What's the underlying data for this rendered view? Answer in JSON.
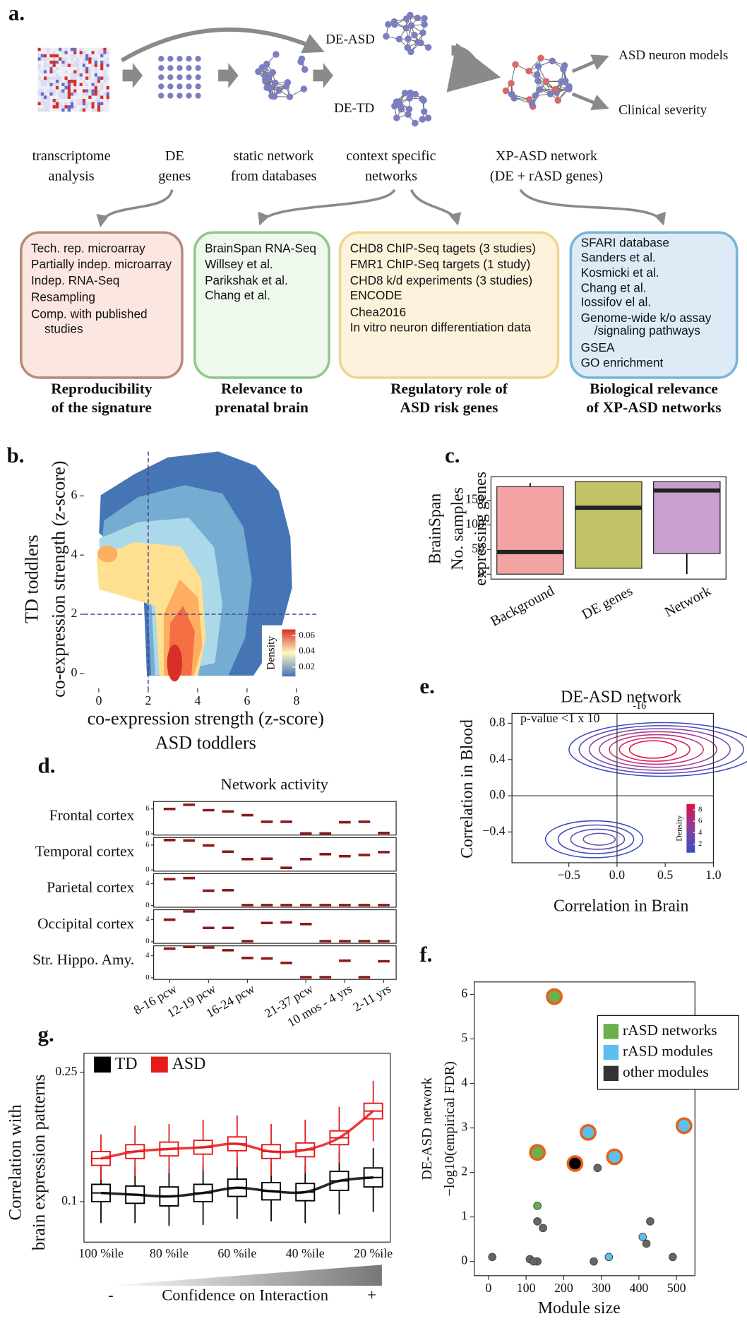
{
  "panel_a": {
    "label": "a.",
    "graph_labels": [
      "DE-ASD",
      "DE-TD"
    ],
    "outcomes": [
      "ASD neuron models",
      "Clinical severity"
    ],
    "steps": [
      [
        "transcriptome",
        "analysis"
      ],
      [
        "DE",
        "genes"
      ],
      [
        "static network",
        "from databases"
      ],
      [
        "context specific",
        "networks"
      ],
      [
        "XP-ASD network",
        "(DE + rASD genes)"
      ]
    ],
    "boxes": [
      {
        "items": [
          "Tech. rep. microarray",
          "Partially indep. microarray",
          "Indep. RNA-Seq",
          "Resampling",
          "Comp. with published",
          "studies"
        ],
        "caption": [
          "Reproducibility",
          "of the signature"
        ]
      },
      {
        "items": [
          "BrainSpan RNA-Seq",
          "Willsey et al.",
          "Parikshak et al.",
          "Chang et al."
        ],
        "caption": [
          "Relevance to",
          "prenatal brain"
        ]
      },
      {
        "items": [
          "CHD8 ChIP-Seq tagets (3 studies)",
          "FMR1 ChIP-Seq targets (1 study)",
          "CHD8 k/d experiments (3 studies)",
          "ENCODE",
          "Chea2016",
          "In vitro neuron differentiation data"
        ],
        "caption": [
          "Regulatory role of",
          "ASD risk genes"
        ]
      },
      {
        "items": [
          "SFARI database",
          "Sanders et al.",
          "Kosmicki et al.",
          "Chang et al.",
          "Iossifov el al.",
          "Genome-wide k/o assay",
          "/signaling pathways",
          "GSEA",
          "GO enrichment"
        ],
        "caption": [
          "Biological relevance",
          "of XP-ASD networks"
        ]
      }
    ]
  },
  "chart_data": [
    {
      "type": "density",
      "label": "b.",
      "x_label": [
        "co-expression strength (z-score)",
        "ASD toddlers"
      ],
      "y_label": [
        "TD toddlers",
        "co-expression strength (z-score)"
      ],
      "xlim": [
        -0.6,
        8.4
      ],
      "xticks": [
        0,
        2,
        4,
        6,
        8
      ],
      "ylim": [
        -0.5,
        7.5
      ],
      "yticks": [
        0,
        2,
        4,
        6
      ],
      "vlines": [
        2
      ],
      "hlines": [
        2
      ],
      "legend_title": "Density",
      "legend_lim": [
        0.008,
        0.068
      ],
      "legend_ticks": [
        0.02,
        0.04,
        0.06
      ]
    },
    {
      "type": "box",
      "label": "c.",
      "y_label": [
        "BrainSpan",
        "No. samples",
        "expressing genes"
      ],
      "categories": [
        "Background",
        "DE genes",
        "Network"
      ],
      "ylim": [
        -10,
        198
      ],
      "yticks": [
        0,
        50,
        100,
        150
      ],
      "series": [
        {
          "colors": [
            "#f4a3a3",
            "#c2c266",
            "#c9a0cd"
          ],
          "min": [
            0,
            12,
            0
          ],
          "q1": [
            0,
            12,
            42
          ],
          "median": [
            45,
            135,
            170
          ],
          "q3": [
            178,
            188,
            188
          ],
          "max": [
            185,
            188,
            188
          ]
        }
      ]
    },
    {
      "type": "dash",
      "label": "d.",
      "title": "Network activity",
      "color": "#8b1a1a",
      "categories": [
        "8-16 pcw",
        null,
        "12-19 pcw",
        null,
        "16-24 pcw",
        null,
        null,
        "21-37 pcw",
        null,
        "10 mos - 4 yrs",
        null,
        "2-11 yrs"
      ],
      "panels": [
        {
          "name": "Frontal cortex",
          "ylim": [
            -0.3,
            7.8
          ],
          "yticks": [
            0,
            6
          ],
          "values": [
            6.0,
            7.0,
            5.7,
            5.4,
            4.5,
            2.9,
            2.9,
            0.1,
            0.1,
            2.8,
            2.9,
            0.2
          ]
        },
        {
          "name": "Temporal cortex",
          "ylim": [
            -0.3,
            7.8
          ],
          "yticks": [
            0,
            6
          ],
          "values": [
            7.2,
            7.1,
            5.9,
            4.4,
            2.6,
            2.7,
            0.5,
            2.6,
            3.8,
            3.3,
            3.6,
            4.3
          ]
        },
        {
          "name": "Parietal cortex",
          "ylim": [
            -0.3,
            5.8
          ],
          "yticks": [
            0,
            4
          ],
          "values": [
            4.8,
            5.0,
            2.7,
            2.8,
            0.1,
            0.1,
            0.1,
            0.1,
            0.1,
            0.1,
            0.1,
            0.1
          ]
        },
        {
          "name": "Occipital cortex",
          "ylim": [
            -0.3,
            5.8
          ],
          "yticks": [
            0,
            4
          ],
          "values": [
            4.0,
            5.5,
            2.5,
            2.5,
            0.1,
            3.4,
            3.5,
            3.2,
            0.1,
            0.1,
            0.1,
            0.1
          ]
        },
        {
          "name": "Str. Hippo. Amy.",
          "ylim": [
            -0.3,
            5.8
          ],
          "yticks": [
            0,
            4
          ],
          "values": [
            5.3,
            5.6,
            5.5,
            5.0,
            3.6,
            3.5,
            2.7,
            0.1,
            0.1,
            3.1,
            0.1,
            3.0
          ]
        }
      ]
    },
    {
      "type": "contour",
      "label": "e.",
      "title": "DE-ASD network",
      "x_label": "Correlation in Brain",
      "y_label": "Correlation in Blood",
      "annotation": "p-value <1 x 10",
      "annotation_exponent": "-16",
      "xlim": [
        -1.09,
        1.0
      ],
      "xticks": [
        {
          "value": -0.5,
          "label": "−0.5"
        },
        {
          "value": 0,
          "label": "0.0"
        },
        {
          "value": 0.5,
          "label": "0.5"
        },
        {
          "value": 1,
          "label": "1.0"
        }
      ],
      "ylim": [
        -0.74,
        0.91
      ],
      "yticks": [
        {
          "value": -0.4,
          "label": "−0.4"
        },
        {
          "value": 0,
          "label": "0.0"
        },
        {
          "value": 0.4,
          "label": "0.4"
        },
        {
          "value": 0.8,
          "label": "0.8"
        }
      ],
      "vlines": [
        0
      ],
      "hlines": [
        0
      ],
      "legend_title": "Density",
      "legend_lim": [
        0.5,
        9
      ],
      "legend_ticks": [
        2,
        4,
        6,
        8
      ]
    },
    {
      "type": "scatter",
      "label": "f.",
      "x_label": "Module size",
      "y_label": [
        "DE-ASD network",
        "−log10(empirical FDR)"
      ],
      "xlim": [
        -38,
        549
      ],
      "xticks": [
        0,
        100,
        200,
        300,
        400,
        500
      ],
      "ylim": [
        -0.32,
        6.28
      ],
      "yticks": [
        0,
        1,
        2,
        3,
        4,
        5,
        6
      ],
      "highlight_color": "#e8601c",
      "series": [
        {
          "name": "rASD networks",
          "color": "#6ab04c",
          "x": [
            175,
            130,
            130
          ],
          "values": [
            5.95,
            2.45,
            1.25
          ],
          "highlighted": [
            true,
            true,
            false
          ]
        },
        {
          "name": "rASD modules",
          "color": "#5bc0eb",
          "x": [
            265,
            335,
            520,
            410,
            320
          ],
          "values": [
            2.9,
            2.35,
            3.05,
            0.55,
            0.1
          ],
          "highlighted": [
            true,
            true,
            true,
            false,
            false
          ]
        },
        {
          "name": "other modules",
          "color": "#333333",
          "x": [
            230,
            290,
            130,
            145,
            430,
            420,
            490,
            280,
            130,
            110,
            10,
            120
          ],
          "values": [
            2.2,
            2.1,
            0.9,
            0.75,
            0.9,
            0.4,
            0.1,
            0,
            0,
            0.05,
            0.1,
            0
          ],
          "highlighted": [
            true,
            false,
            false,
            false,
            false,
            false,
            false,
            false,
            false,
            false,
            false,
            false
          ]
        }
      ]
    },
    {
      "type": "box",
      "label": "g.",
      "y_label": [
        "Correlation with",
        "brain expression patterns"
      ],
      "categories": [
        "100 %ile",
        null,
        "80 %ile",
        null,
        "60 %ile",
        null,
        "40 %ile",
        null,
        "20 %ile"
      ],
      "ylim": [
        0.053,
        0.272
      ],
      "yticks": [
        0.1,
        0.25
      ],
      "trend": true,
      "axis_title": "Confidence on Interaction",
      "low_label": "-",
      "high_label": "+",
      "series": [
        {
          "name": "TD",
          "color": "#000000",
          "min": [
            0.075,
            0.075,
            0.072,
            0.073,
            0.08,
            0.077,
            0.075,
            0.085,
            0.088
          ],
          "q1": [
            0.1,
            0.098,
            0.095,
            0.1,
            0.106,
            0.102,
            0.101,
            0.113,
            0.117
          ],
          "median": [
            0.11,
            0.108,
            0.106,
            0.11,
            0.116,
            0.112,
            0.111,
            0.124,
            0.128
          ],
          "q3": [
            0.12,
            0.118,
            0.117,
            0.12,
            0.126,
            0.122,
            0.121,
            0.135,
            0.139
          ],
          "max": [
            0.14,
            0.14,
            0.138,
            0.142,
            0.15,
            0.145,
            0.142,
            0.158,
            0.162
          ]
        },
        {
          "name": "ASD",
          "color": "#e41a1c",
          "min": [
            0.125,
            0.13,
            0.133,
            0.135,
            0.14,
            0.13,
            0.133,
            0.145,
            0.17
          ],
          "q1": [
            0.142,
            0.15,
            0.153,
            0.155,
            0.159,
            0.15,
            0.152,
            0.166,
            0.196
          ],
          "median": [
            0.15,
            0.158,
            0.161,
            0.163,
            0.167,
            0.158,
            0.16,
            0.174,
            0.205
          ],
          "q3": [
            0.158,
            0.166,
            0.169,
            0.171,
            0.175,
            0.166,
            0.168,
            0.182,
            0.214
          ],
          "max": [
            0.178,
            0.188,
            0.19,
            0.195,
            0.2,
            0.19,
            0.195,
            0.21,
            0.24
          ]
        }
      ]
    }
  ]
}
